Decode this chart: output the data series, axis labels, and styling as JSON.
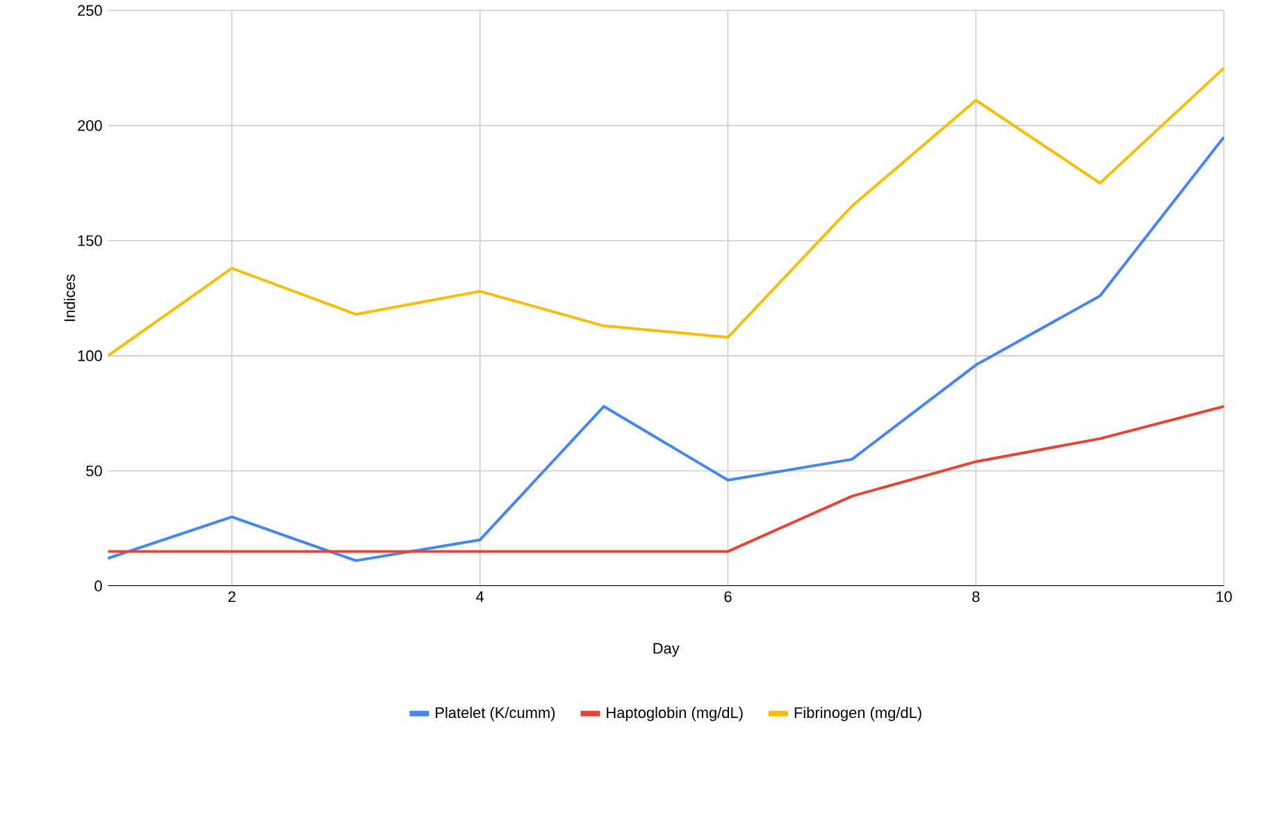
{
  "chart_data": {
    "type": "line",
    "xlabel": "Day",
    "ylabel": "Indices",
    "x": [
      1,
      2,
      3,
      4,
      5,
      6,
      7,
      8,
      9,
      10
    ],
    "series": [
      {
        "name": "Platelet (K/cumm)",
        "color": "#4285f4",
        "values": [
          12,
          30,
          11,
          20,
          78,
          46,
          55,
          96,
          126,
          195
        ]
      },
      {
        "name": "Haptoglobin (mg/dL)",
        "color": "#ea4335",
        "values": [
          15,
          15,
          15,
          15,
          15,
          15,
          39,
          54,
          64,
          78
        ]
      },
      {
        "name": "Fibrinogen (mg/dL)",
        "color": "#fbbc04",
        "values": [
          100,
          138,
          118,
          128,
          113,
          108,
          165,
          211,
          175,
          225
        ]
      }
    ],
    "xlim": [
      1,
      10
    ],
    "xticks": [
      2,
      4,
      6,
      8,
      10
    ],
    "ylim": [
      0,
      250
    ],
    "yticks": [
      0,
      50,
      100,
      150,
      200,
      250
    ],
    "grid": true,
    "legend": "bottom",
    "marker": "none",
    "line_style": "solid"
  }
}
